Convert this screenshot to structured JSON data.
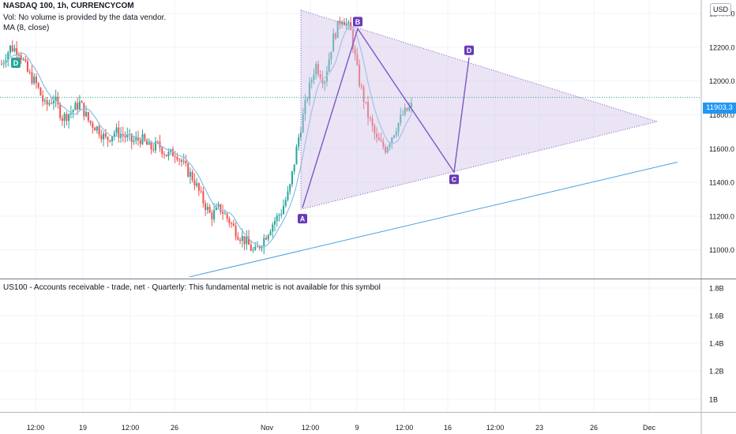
{
  "header": {
    "symbol_line": "NASDAQ 100, 1h, CURRENCYCOM",
    "vol_line": "Vol: No volume is provided by the data vendor.",
    "ma_line": "MA (8, close)",
    "currency": "USD"
  },
  "lower_pane": {
    "message": "US100 - Accounts receivable - trade, net · Quarterly: This fundamental metric is not available for this symbol",
    "ticks": [
      "1.8B",
      "1.6B",
      "1.4B",
      "1.2B",
      "1B"
    ]
  },
  "last_price": "11903.3",
  "colors": {
    "candle_up": "#26a69a",
    "candle_down": "#ef5350",
    "ma": "#90c2e4",
    "pattern_fill": "#d1c4e9",
    "pattern_line": "#7e57c2",
    "trendline": "#4aa3df",
    "price_line": "#26a69a",
    "badge": "#2196f3"
  },
  "chart_data": {
    "type": "candlestick",
    "y_axis": {
      "ticks": [
        11000,
        11200,
        11400,
        11600,
        11800,
        12000,
        12200,
        12400
      ],
      "ylim": [
        10830,
        12480
      ]
    },
    "x_axis": {
      "tick_labels": [
        "12:00",
        "19",
        "12:00",
        "26",
        "Nov",
        "12:00",
        "9",
        "12:00",
        "16",
        "12:00",
        "23",
        "26",
        "Dec"
      ]
    },
    "price_path": [
      12100,
      12200,
      12180,
      12050,
      11980,
      11850,
      11900,
      11780,
      11820,
      11870,
      11760,
      11720,
      11650,
      11700,
      11680,
      11640,
      11660,
      11600,
      11620,
      11560,
      11580,
      11490,
      11420,
      11300,
      11200,
      11250,
      11180,
      11100,
      11050,
      10980,
      11060,
      11150,
      11220,
      11350,
      11650,
      11900,
      12100,
      12000,
      12250,
      12380,
      12300,
      12000,
      11800,
      11650,
      11600,
      11700,
      11800,
      11850
    ],
    "pattern": {
      "name": "ABCD",
      "points": [
        {
          "label": "A",
          "value": 11250
        },
        {
          "label": "B",
          "value": 12310
        },
        {
          "label": "C",
          "value": 11460
        },
        {
          "label": "D",
          "value": 12140
        }
      ]
    },
    "triangle": {
      "values": [
        12420,
        11240,
        11760
      ]
    },
    "trendline": {
      "from": 10840,
      "to": 11520
    },
    "last_price": 11903.3
  }
}
